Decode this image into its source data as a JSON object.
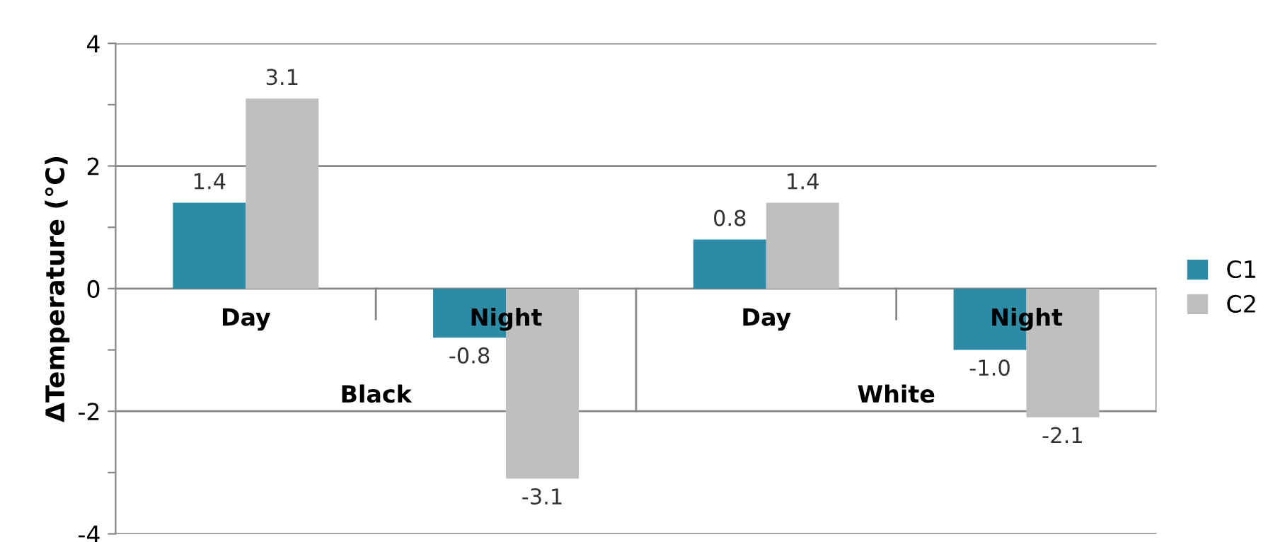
{
  "chart_data": {
    "type": "bar",
    "ylabel": "ΔTemperature (°C)",
    "categories": [
      "Day",
      "Night",
      "Day",
      "Night"
    ],
    "series": [
      {
        "name": "C1",
        "color": "#2e8ba6",
        "values": [
          1.4,
          -0.8,
          0.8,
          -1.0
        ],
        "value_labels": [
          "1.4",
          "-0.8",
          "0.8",
          "-1.0"
        ]
      },
      {
        "name": "C2",
        "color": "#bfbfbf",
        "values": [
          3.1,
          -3.1,
          1.4,
          -2.1
        ],
        "value_labels": [
          "3.1",
          "-3.1",
          "1.4",
          "-2.1"
        ]
      }
    ],
    "annotations": [
      "Black",
      "White"
    ],
    "ylim": [
      -4,
      4
    ],
    "yticks": [
      -4,
      {
        "value": -3,
        "label": null
      },
      -2,
      {
        "value": -1,
        "label": null
      },
      0,
      {
        "value": 1,
        "label": null
      },
      2,
      {
        "value": 3,
        "label": null
      },
      4
    ],
    "grid": "y",
    "legend": "right"
  }
}
